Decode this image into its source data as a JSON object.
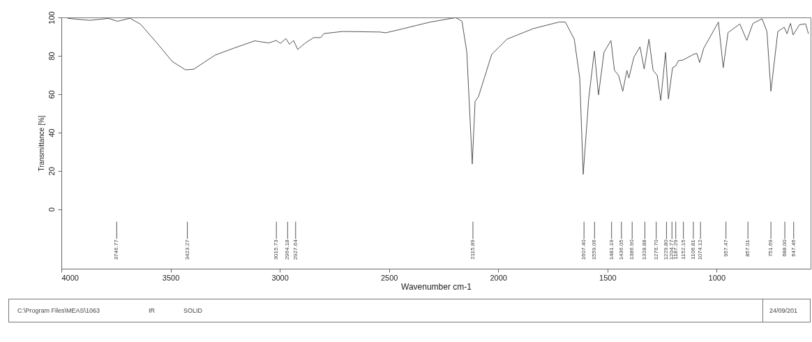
{
  "chart_data": {
    "type": "line",
    "xlabel": "Wavenumber cm-1",
    "ylabel": "Transmittance [%]",
    "xlim": [
      4000,
      570
    ],
    "ylim": [
      -31,
      100
    ],
    "xticks": [
      4000,
      3500,
      3000,
      2500,
      2000,
      1500,
      1000
    ],
    "yticks": [
      0,
      20,
      40,
      60,
      80,
      100
    ],
    "grid": false,
    "marker": "none",
    "line_style": "solid",
    "series": [
      {
        "color": "#555555",
        "x": [
          3971,
          3870,
          3784,
          3743,
          3686,
          3638,
          3565,
          3492,
          3432,
          3394,
          3296,
          3210,
          3115,
          3051,
          3017,
          2997,
          2972,
          2956,
          2937,
          2918,
          2883,
          2845,
          2813,
          2798,
          2712,
          2541,
          2515,
          2433,
          2315,
          2195,
          2166,
          2144,
          2119,
          2106,
          2090,
          2030,
          1960,
          1839,
          1722,
          1693,
          1652,
          1627,
          1611,
          1586,
          1560,
          1541,
          1516,
          1484,
          1468,
          1449,
          1430,
          1411,
          1402,
          1379,
          1351,
          1332,
          1310,
          1291,
          1272,
          1256,
          1234,
          1221,
          1202,
          1187.29,
          1175,
          1154,
          1107,
          1091,
          1078,
          1059,
          992,
          970,
          948,
          894,
          862,
          834,
          792,
          770,
          751.69,
          720,
          691,
          678,
          662,
          650,
          621,
          593,
          580
        ],
        "values": [
          99.5,
          98.5,
          99.5,
          98,
          99.6,
          96.5,
          87,
          77,
          72.7,
          73,
          80.4,
          84,
          87.8,
          86.7,
          88,
          86.5,
          89,
          86,
          88,
          83.3,
          86.7,
          89.5,
          89.5,
          91.6,
          92.7,
          92.4,
          92,
          94.2,
          97.5,
          99.9,
          98,
          82,
          23.6,
          56.2,
          58.9,
          80.7,
          88.7,
          94.2,
          97.6,
          97.6,
          88.7,
          68.4,
          18.2,
          57.5,
          82.5,
          59.6,
          81.8,
          88,
          72.4,
          69.8,
          61.5,
          72.4,
          68.4,
          79.3,
          84.7,
          73.1,
          88.7,
          72.4,
          69.8,
          56.7,
          81.8,
          57.5,
          73.8,
          74.8,
          77.5,
          77.8,
          80.7,
          81.3,
          76.5,
          84,
          97.6,
          73.8,
          92.1,
          96.6,
          88,
          96.9,
          99.3,
          92.7,
          61.5,
          92.7,
          94.9,
          91.5,
          96.9,
          90.9,
          96.2,
          96.7,
          91.5
        ]
      }
    ],
    "annotations": [
      {
        "text": "3746.77",
        "x": 3746.77
      },
      {
        "text": "3423.27",
        "x": 3423.27
      },
      {
        "text": "3015.73",
        "x": 3015.73
      },
      {
        "text": "2964.18",
        "x": 2964.18
      },
      {
        "text": "2927.64",
        "x": 2927.64
      },
      {
        "text": "2115.89",
        "x": 2115.89
      },
      {
        "text": "1607.40",
        "x": 1607.4
      },
      {
        "text": "1559.06",
        "x": 1559.06
      },
      {
        "text": "1481.19",
        "x": 1481.19
      },
      {
        "text": "1436.05",
        "x": 1436.05
      },
      {
        "text": "1386.90",
        "x": 1386.9
      },
      {
        "text": "1328.88",
        "x": 1328.88
      },
      {
        "text": "1276.70",
        "x": 1276.7
      },
      {
        "text": "1229.80",
        "x": 1229.8
      },
      {
        "text": "1204.77",
        "x": 1204.77
      },
      {
        "text": "1187.29",
        "x": 1187.29
      },
      {
        "text": "1152.15",
        "x": 1152.15
      },
      {
        "text": "1106.81",
        "x": 1106.81
      },
      {
        "text": "1074.12",
        "x": 1074.12
      },
      {
        "text": "957.47",
        "x": 957.47
      },
      {
        "text": "857.01",
        "x": 857.01
      },
      {
        "text": "751.69",
        "x": 751.69
      },
      {
        "text": "688.00",
        "x": 688
      },
      {
        "text": "647.46",
        "x": 647.46
      },
      "C:\\Program Files\\MEAS\\1063",
      "IR",
      "SOLID",
      "24/09/201"
    ]
  }
}
